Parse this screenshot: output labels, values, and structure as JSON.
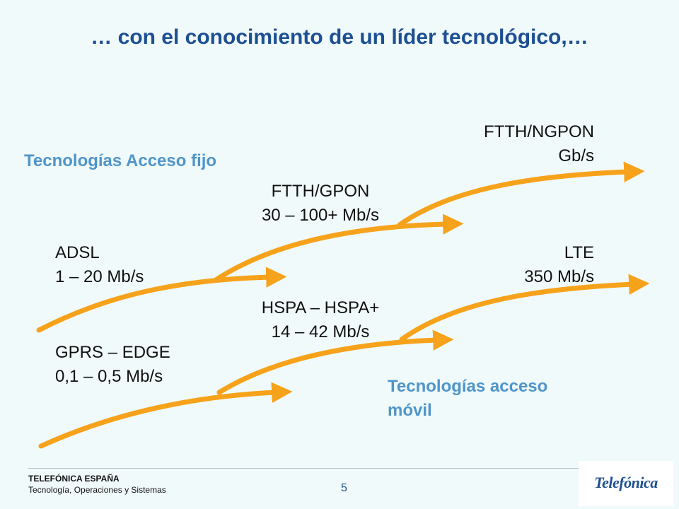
{
  "title": "… con el conocimiento de un líder tecnológico,…",
  "fixed": {
    "heading": "Tecnologías Acceso fijo",
    "stages": [
      {
        "name": "ADSL",
        "speed": "1 – 20 Mb/s"
      },
      {
        "name": "FTTH/GPON",
        "speed": "30 – 100+ Mb/s"
      },
      {
        "name": "FTTH/NGPON",
        "speed": "Gb/s"
      }
    ]
  },
  "mobile": {
    "heading_line1": "Tecnologías acceso",
    "heading_line2": "móvil",
    "stages": [
      {
        "name": "GPRS – EDGE",
        "speed": "0,1 – 0,5 Mb/s"
      },
      {
        "name": "HSPA – HSPA+",
        "speed": "14 – 42 Mb/s"
      },
      {
        "name": "LTE",
        "speed": "350 Mb/s"
      }
    ]
  },
  "colors": {
    "title": "#1d4f93",
    "arrow": "#f7a21b",
    "section_heading": "#4f95c9",
    "background": "#f0fafb"
  },
  "footer": {
    "company": "TELEFÓNICA ESPAÑA",
    "department": "Tecnología, Operaciones y Sistemas",
    "page_number": "5",
    "logo": "Telefónica"
  }
}
